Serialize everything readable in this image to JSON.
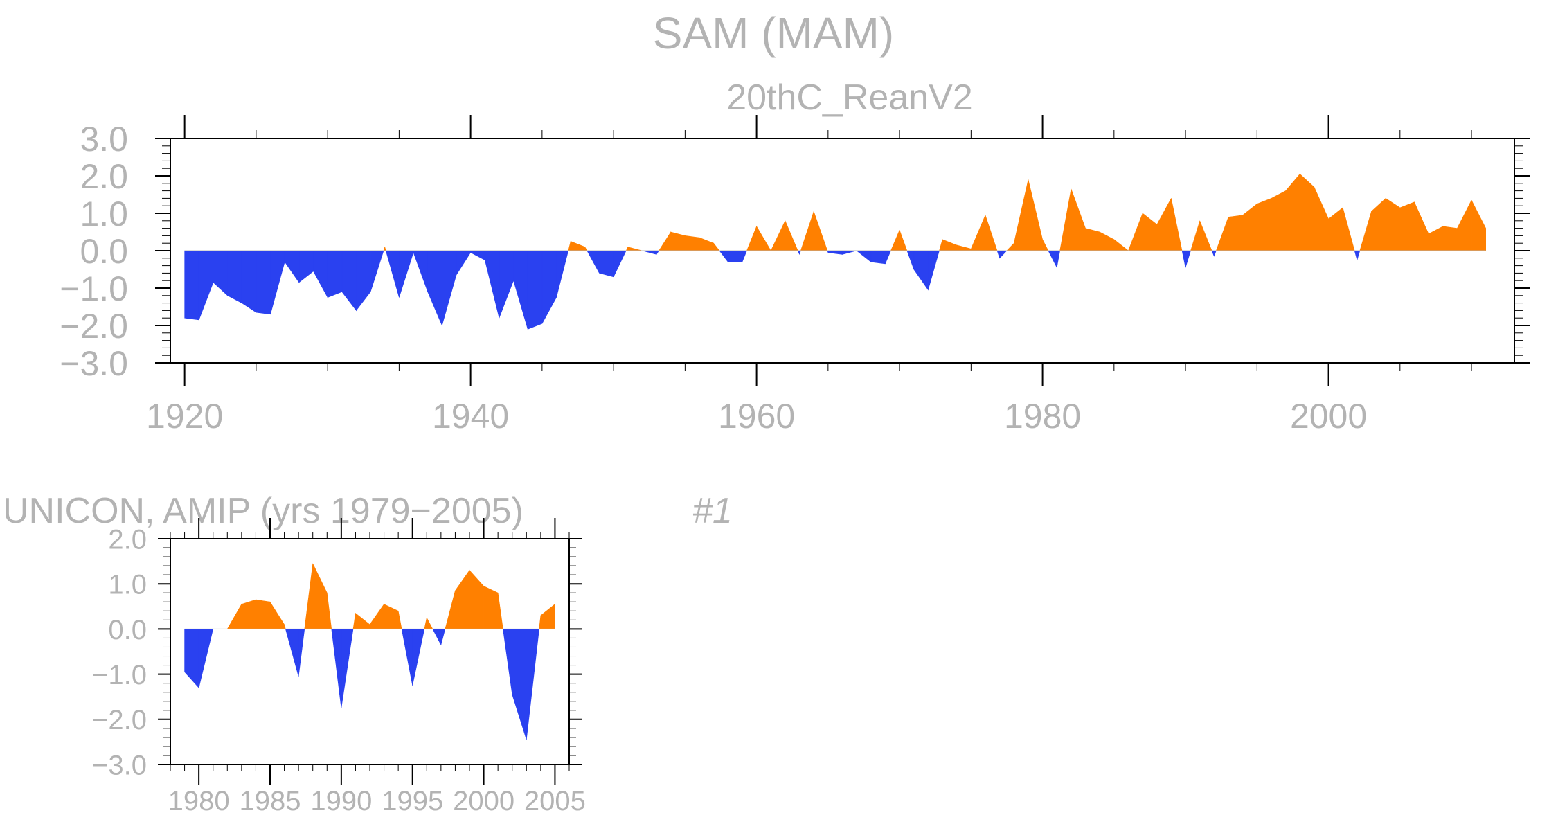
{
  "colors": {
    "positive": "#ff8000",
    "negative": "#2a41f0",
    "text": "#b3b3b3",
    "frame": "#000000"
  },
  "chart_data": [
    {
      "type": "area",
      "title": "SAM (MAM)",
      "subtitle": "20thC_ReanV2",
      "ylim": [
        -3,
        3
      ],
      "y_ticks": [
        "3.0",
        "2.0",
        "1.0",
        "0.0",
        "−1.0",
        "−2.0",
        "−3.0"
      ],
      "xlim": [
        1919,
        2013
      ],
      "x_ticks": [
        "1920",
        "1940",
        "1960",
        "1980",
        "2000"
      ],
      "x": [
        1920,
        1921,
        1922,
        1923,
        1924,
        1925,
        1926,
        1927,
        1928,
        1929,
        1930,
        1931,
        1932,
        1933,
        1934,
        1935,
        1936,
        1937,
        1938,
        1939,
        1940,
        1941,
        1942,
        1943,
        1944,
        1945,
        1946,
        1947,
        1948,
        1949,
        1950,
        1951,
        1952,
        1953,
        1954,
        1955,
        1956,
        1957,
        1958,
        1959,
        1960,
        1961,
        1962,
        1963,
        1964,
        1965,
        1966,
        1967,
        1968,
        1969,
        1970,
        1971,
        1972,
        1973,
        1974,
        1975,
        1976,
        1977,
        1978,
        1979,
        1980,
        1981,
        1982,
        1983,
        1984,
        1985,
        1986,
        1987,
        1988,
        1989,
        1990,
        1991,
        1992,
        1993,
        1994,
        1995,
        1996,
        1997,
        1998,
        1999,
        2000,
        2001,
        2002,
        2003,
        2004,
        2005,
        2006,
        2007,
        2008,
        2009,
        2010,
        2011
      ],
      "values": [
        -1.8,
        -1.85,
        -0.85,
        -1.2,
        -1.4,
        -1.65,
        -1.7,
        -0.3,
        -0.85,
        -0.55,
        -1.25,
        -1.1,
        -1.6,
        -1.1,
        0.1,
        -1.25,
        -0.05,
        -1.1,
        -2.0,
        -0.65,
        -0.05,
        -0.25,
        -1.8,
        -0.8,
        -2.1,
        -1.95,
        -1.25,
        0.25,
        0.1,
        -0.6,
        -0.7,
        0.1,
        0.0,
        -0.1,
        0.5,
        0.4,
        0.35,
        0.2,
        -0.3,
        -0.3,
        0.65,
        0.0,
        0.8,
        -0.1,
        1.05,
        -0.05,
        -0.1,
        0.0,
        -0.3,
        -0.35,
        0.55,
        -0.5,
        -1.05,
        0.3,
        0.15,
        0.05,
        0.95,
        -0.2,
        0.2,
        1.9,
        0.3,
        -0.45,
        1.65,
        0.6,
        0.5,
        0.3,
        0.0,
        1.0,
        0.7,
        1.4,
        -0.45,
        0.8,
        -0.15,
        0.9,
        0.95,
        1.25,
        1.4,
        1.6,
        2.05,
        1.7,
        0.85,
        1.15,
        -0.25,
        1.05,
        1.4,
        1.15,
        1.3,
        0.45,
        0.65,
        0.6,
        1.35,
        0.6
      ]
    },
    {
      "type": "area",
      "title": "UNICON, AMIP (yrs 1979−2005)",
      "run_label": "#1",
      "ylim": [
        -3,
        2
      ],
      "y_ticks": [
        "2.0",
        "1.0",
        "0.0",
        "−1.0",
        "−2.0",
        "−3.0"
      ],
      "xlim": [
        1978,
        2006
      ],
      "x_ticks": [
        "1980",
        "1985",
        "1990",
        "1995",
        "2000",
        "2005"
      ],
      "x": [
        1979,
        1980,
        1981,
        1982,
        1983,
        1984,
        1985,
        1986,
        1987,
        1988,
        1989,
        1990,
        1991,
        1992,
        1993,
        1994,
        1995,
        1996,
        1997,
        1998,
        1999,
        2000,
        2001,
        2002,
        2003,
        2004,
        2005
      ],
      "values": [
        -0.95,
        -1.3,
        0.0,
        0.0,
        0.55,
        0.65,
        0.6,
        0.1,
        -1.05,
        1.45,
        0.8,
        -1.75,
        0.35,
        0.1,
        0.55,
        0.4,
        -1.25,
        0.25,
        -0.35,
        0.85,
        1.3,
        0.95,
        0.8,
        -1.45,
        -2.45,
        0.3,
        0.55
      ]
    }
  ]
}
